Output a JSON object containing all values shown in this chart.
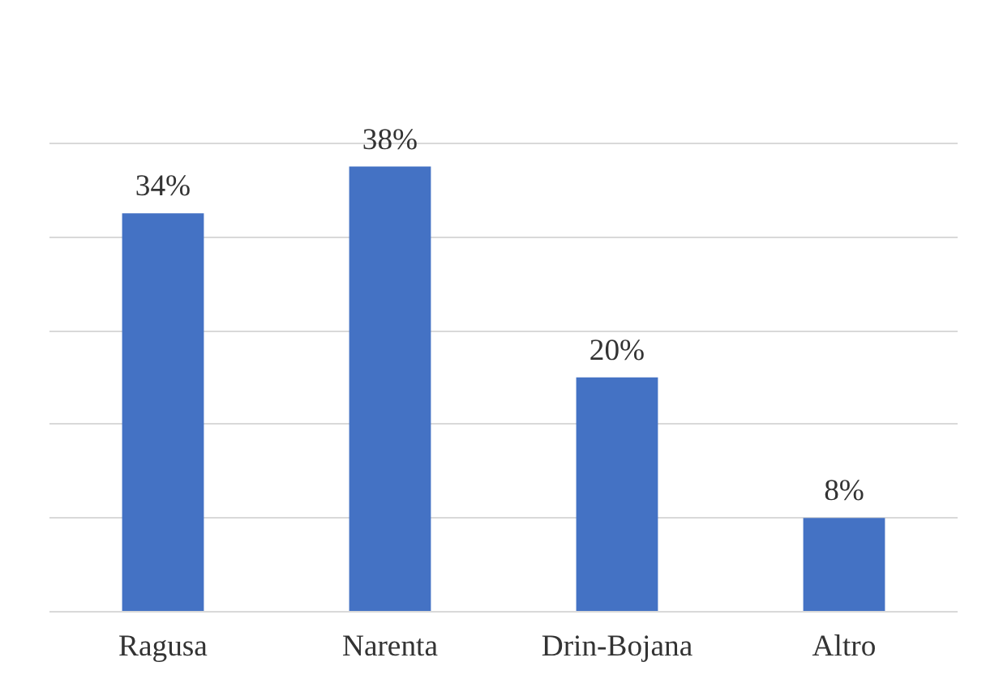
{
  "chart_data": {
    "type": "bar",
    "categories": [
      "Ragusa",
      "Narenta",
      "Drin-Bojana",
      "Altro"
    ],
    "values": [
      34,
      38,
      20,
      8
    ],
    "value_labels": [
      "34%",
      "38%",
      "20%",
      "8%"
    ],
    "color": "#4472c4",
    "grid": "y",
    "tick_labels": "x"
  }
}
